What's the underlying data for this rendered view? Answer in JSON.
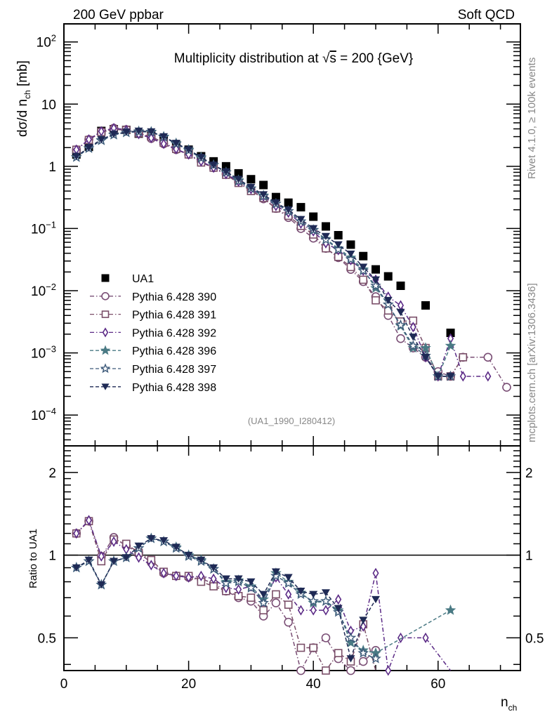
{
  "header": {
    "left_label": "200 GeV ppbar",
    "right_label": "Soft QCD"
  },
  "side_labels": {
    "top": "Rivet 4.1.0, ≥ 100k events",
    "bottom": "mcplots.cern.ch [arXiv:1306.3436]"
  },
  "chart_data": [
    {
      "type": "scatter",
      "title": "Multiplicity distribution at √s = 200 {GeV}",
      "title_parts": {
        "prefix": "Multiplicity distribution at ",
        "sqrt": "√",
        "s": "s",
        "suffix": " = 200 {GeV}"
      },
      "analysis_label": "(UA1_1990_I280412)",
      "ylabel": {
        "main": "dσ/d n",
        "sub": "ch",
        "unit": " [mb]"
      },
      "xlabel": {
        "main": "n",
        "sub": "ch"
      },
      "xlim": [
        0,
        73.2
      ],
      "ylim": [
        3.2e-05,
        195
      ],
      "yscale": "log",
      "y_tick_labels": [
        {
          "value": 100,
          "base": "10",
          "exp": "2"
        },
        {
          "value": 10,
          "base": "10",
          "exp": ""
        },
        {
          "value": 1,
          "base": "1",
          "exp": ""
        },
        {
          "value": 0.1,
          "base": "10",
          "exp": "−1"
        },
        {
          "value": 0.01,
          "base": "10",
          "exp": "−2"
        },
        {
          "value": 0.001,
          "base": "10",
          "exp": "−3"
        },
        {
          "value": 0.0001,
          "base": "10",
          "exp": "−4"
        }
      ],
      "legend_position": "left-middle",
      "series": [
        {
          "name": "UA1",
          "marker": "filled-square",
          "color": "#000000",
          "line": "none",
          "x": [
            2,
            4,
            6,
            8,
            10,
            12,
            14,
            16,
            18,
            20,
            22,
            24,
            26,
            28,
            30,
            32,
            34,
            36,
            38,
            40,
            42,
            44,
            46,
            48,
            50,
            52,
            54,
            58,
            62
          ],
          "y": [
            1.55,
            2.05,
            3.7,
            3.95,
            3.85,
            3.35,
            3.1,
            2.65,
            2.2,
            1.85,
            1.45,
            1.2,
            1.0,
            0.77,
            0.62,
            0.5,
            0.32,
            0.26,
            0.22,
            0.155,
            0.108,
            0.078,
            0.055,
            0.036,
            0.022,
            0.017,
            0.012,
            0.0058,
            0.0021
          ]
        },
        {
          "name": "Pythia 6.428 390",
          "marker": "open-circle",
          "color": "#7a4e75",
          "line": "dashdot",
          "x": [
            2,
            4,
            6,
            8,
            10,
            12,
            14,
            16,
            18,
            20,
            22,
            24,
            26,
            28,
            30,
            32,
            34,
            36,
            38,
            40,
            42,
            44,
            46,
            48,
            50,
            52,
            54,
            56,
            58,
            60,
            62,
            64,
            68,
            71
          ],
          "y": [
            1.85,
            2.7,
            3.6,
            4.1,
            3.9,
            3.4,
            2.8,
            2.3,
            1.85,
            1.55,
            1.2,
            0.95,
            0.75,
            0.56,
            0.42,
            0.3,
            0.21,
            0.15,
            0.1,
            0.07,
            0.048,
            0.034,
            0.022,
            0.014,
            0.008,
            0.004,
            0.0017,
            0.0012,
            0.00085,
            0.0005,
            0.00042,
            0.00085,
            0.00085,
            0.00028
          ]
        },
        {
          "name": "Pythia 6.428 391",
          "marker": "open-square",
          "color": "#7a4e68",
          "line": "dashdot",
          "x": [
            2,
            4,
            6,
            8,
            10,
            12,
            14,
            16,
            18,
            20,
            22,
            24,
            26,
            28,
            30,
            32,
            34,
            36,
            38,
            40,
            42,
            44,
            46,
            48,
            50,
            52,
            54,
            56,
            58,
            60,
            62,
            64
          ],
          "y": [
            1.85,
            2.65,
            3.55,
            3.9,
            3.85,
            3.4,
            3.0,
            2.4,
            1.9,
            1.55,
            1.15,
            0.95,
            0.73,
            0.54,
            0.4,
            0.31,
            0.21,
            0.16,
            0.11,
            0.08,
            0.048,
            0.035,
            0.024,
            0.015,
            0.007,
            0.0048,
            0.0032,
            0.0033,
            0.0012,
            0.00042,
            0.00042,
            0.00085
          ]
        },
        {
          "name": "Pythia 6.428 392",
          "marker": "open-diamond",
          "color": "#5b2a86",
          "line": "dashdot",
          "x": [
            2,
            4,
            6,
            8,
            10,
            12,
            14,
            16,
            18,
            20,
            22,
            24,
            26,
            28,
            30,
            32,
            34,
            36,
            38,
            40,
            42,
            44,
            46,
            48,
            50,
            52,
            54,
            56,
            58,
            60,
            62,
            64,
            68
          ],
          "y": [
            1.85,
            2.7,
            3.65,
            4.1,
            3.85,
            3.3,
            2.85,
            2.3,
            1.9,
            1.55,
            1.2,
            0.95,
            0.75,
            0.57,
            0.43,
            0.33,
            0.23,
            0.18,
            0.12,
            0.09,
            0.058,
            0.045,
            0.031,
            0.021,
            0.015,
            0.008,
            0.0058,
            0.0026,
            0.00085,
            0.00042,
            0.0017,
            0.00042,
            0.00042
          ]
        },
        {
          "name": "Pythia 6.428 396",
          "marker": "filled-star",
          "color": "#4a7a84",
          "line": "dashed",
          "x": [
            2,
            4,
            6,
            8,
            10,
            12,
            14,
            16,
            18,
            20,
            22,
            24,
            26,
            28,
            30,
            32,
            34,
            36,
            38,
            40,
            42,
            44,
            46,
            48,
            50,
            52,
            54,
            56,
            58,
            60,
            62
          ],
          "y": [
            1.4,
            1.95,
            2.65,
            3.25,
            3.5,
            3.65,
            3.6,
            3.0,
            2.35,
            1.85,
            1.4,
            1.05,
            0.8,
            0.6,
            0.44,
            0.34,
            0.25,
            0.19,
            0.13,
            0.094,
            0.068,
            0.048,
            0.034,
            0.022,
            0.011,
            0.006,
            0.0027,
            0.0012,
            0.0012,
            0.00042,
            0.0013
          ]
        },
        {
          "name": "Pythia 6.428 397",
          "marker": "open-star",
          "color": "#3d5a7a",
          "line": "dashed",
          "x": [
            2,
            4,
            6,
            8,
            10,
            12,
            14,
            16,
            18,
            20,
            22,
            24,
            26,
            28,
            30,
            32,
            34,
            36,
            38,
            40,
            42,
            44,
            46,
            48,
            50,
            52,
            54,
            56,
            58,
            60,
            62
          ],
          "y": [
            1.4,
            1.95,
            2.6,
            3.2,
            3.5,
            3.6,
            3.55,
            2.95,
            2.3,
            1.8,
            1.35,
            1.05,
            0.8,
            0.58,
            0.44,
            0.33,
            0.25,
            0.19,
            0.13,
            0.095,
            0.066,
            0.046,
            0.032,
            0.021,
            0.012,
            0.006,
            0.0028,
            0.0013,
            0.0009,
            0.00042,
            0.00042
          ]
        },
        {
          "name": "Pythia 6.428 398",
          "marker": "filled-triangle-down",
          "color": "#1f2a55",
          "line": "dashed",
          "x": [
            2,
            4,
            6,
            8,
            10,
            12,
            14,
            16,
            18,
            20,
            22,
            24,
            26,
            28,
            30,
            32,
            34,
            36,
            38,
            40,
            42,
            44,
            46,
            48,
            50,
            52,
            54,
            56,
            58,
            60,
            62
          ],
          "y": [
            1.45,
            2.0,
            2.7,
            3.3,
            3.55,
            3.7,
            3.6,
            3.0,
            2.35,
            1.85,
            1.4,
            1.05,
            0.82,
            0.62,
            0.46,
            0.35,
            0.26,
            0.2,
            0.14,
            0.1,
            0.075,
            0.055,
            0.039,
            0.024,
            0.015,
            0.007,
            0.0045,
            0.0018,
            0.00085,
            0.00042,
            0.00042
          ]
        }
      ]
    },
    {
      "type": "line",
      "ylabel": "Ratio to UA1",
      "yscale": "log",
      "ylim": [
        0.38,
        2.5
      ],
      "xlim": [
        0,
        73.2
      ],
      "reference_line": 1,
      "y_tick_labels": [
        "2",
        "1",
        "0.5"
      ],
      "y_tick_values": [
        2,
        1,
        0.5
      ],
      "x_tick_labels": [
        "0",
        "20",
        "40",
        "60"
      ],
      "x_tick_values": [
        0,
        20,
        40,
        60
      ],
      "series": [
        {
          "name": "Pythia 6.428 390",
          "x": [
            2,
            4,
            6,
            8,
            10,
            12,
            14,
            16,
            18,
            20,
            22,
            24,
            26,
            28,
            30,
            32,
            34,
            36,
            38,
            40,
            42,
            44,
            46,
            48,
            50
          ],
          "y": [
            1.2,
            1.33,
            0.99,
            1.16,
            1.08,
            1.02,
            0.94,
            0.86,
            0.84,
            0.83,
            0.82,
            0.79,
            0.74,
            0.7,
            0.68,
            0.6,
            0.67,
            0.57,
            0.38,
            0.46,
            0.5,
            0.42,
            0.38,
            0.41,
            0.45
          ]
        },
        {
          "name": "Pythia 6.428 391",
          "x": [
            2,
            4,
            6,
            8,
            10,
            12,
            14,
            16,
            18,
            20,
            22,
            24,
            26,
            28,
            30,
            32,
            34,
            36,
            38,
            40,
            42,
            44,
            46,
            48,
            50
          ],
          "y": [
            1.2,
            1.33,
            0.95,
            1.14,
            1.1,
            1.02,
            0.96,
            0.87,
            0.84,
            0.84,
            0.8,
            0.77,
            0.74,
            0.71,
            0.7,
            0.63,
            0.72,
            0.66,
            0.46,
            0.46,
            0.38,
            0.44,
            0.41,
            0.56,
            0.36
          ]
        },
        {
          "name": "Pythia 6.428 392",
          "x": [
            2,
            4,
            6,
            8,
            10,
            12,
            14,
            16,
            18,
            20,
            22,
            24,
            26,
            28,
            30,
            32,
            34,
            36,
            38,
            40,
            42,
            44,
            46,
            48,
            50,
            52,
            54,
            58,
            62
          ],
          "y": [
            1.2,
            1.34,
            0.99,
            1.12,
            1.05,
            0.98,
            0.92,
            0.86,
            0.84,
            0.83,
            0.84,
            0.82,
            0.76,
            0.75,
            0.77,
            0.68,
            0.83,
            0.72,
            0.63,
            0.63,
            0.63,
            0.69,
            0.53,
            0.55,
            0.86,
            0.38,
            0.5,
            0.5,
            0.36
          ]
        },
        {
          "name": "Pythia 6.428 396",
          "x": [
            2,
            4,
            6,
            8,
            10,
            12,
            14,
            16,
            18,
            20,
            22,
            24,
            26,
            28,
            30,
            32,
            34,
            36,
            38,
            40,
            42,
            44,
            46,
            48,
            50,
            62
          ],
          "y": [
            0.9,
            0.95,
            0.78,
            0.95,
            0.98,
            1.06,
            1.15,
            1.12,
            1.07,
            1.0,
            0.96,
            0.89,
            0.8,
            0.81,
            0.77,
            0.69,
            0.86,
            0.8,
            0.73,
            0.67,
            0.68,
            0.63,
            0.48,
            0.45,
            0.44,
            0.63
          ]
        },
        {
          "name": "Pythia 6.428 397",
          "x": [
            2,
            4,
            6,
            8,
            10,
            12,
            14,
            16,
            18,
            20,
            22,
            24,
            26,
            28,
            30,
            32,
            34,
            36,
            38,
            40,
            42,
            44,
            46,
            48,
            50
          ],
          "y": [
            0.9,
            0.95,
            0.78,
            0.95,
            0.98,
            1.06,
            1.15,
            1.12,
            1.06,
            0.99,
            0.95,
            0.89,
            0.79,
            0.8,
            0.76,
            0.67,
            0.84,
            0.79,
            0.72,
            0.68,
            0.68,
            0.62,
            0.5,
            0.44,
            0.42
          ]
        },
        {
          "name": "Pythia 6.428 398",
          "x": [
            2,
            4,
            6,
            8,
            10,
            12,
            14,
            16,
            18,
            20,
            22,
            24,
            26,
            28,
            30,
            32,
            34,
            36,
            38,
            40,
            42,
            44,
            46,
            48,
            50
          ],
          "y": [
            0.9,
            0.96,
            0.78,
            0.95,
            0.98,
            1.08,
            1.15,
            1.13,
            1.07,
            1.0,
            0.96,
            0.9,
            0.82,
            0.82,
            0.8,
            0.72,
            0.87,
            0.83,
            0.74,
            0.72,
            0.73,
            0.64,
            0.42,
            0.58,
            0.69
          ]
        }
      ]
    }
  ]
}
